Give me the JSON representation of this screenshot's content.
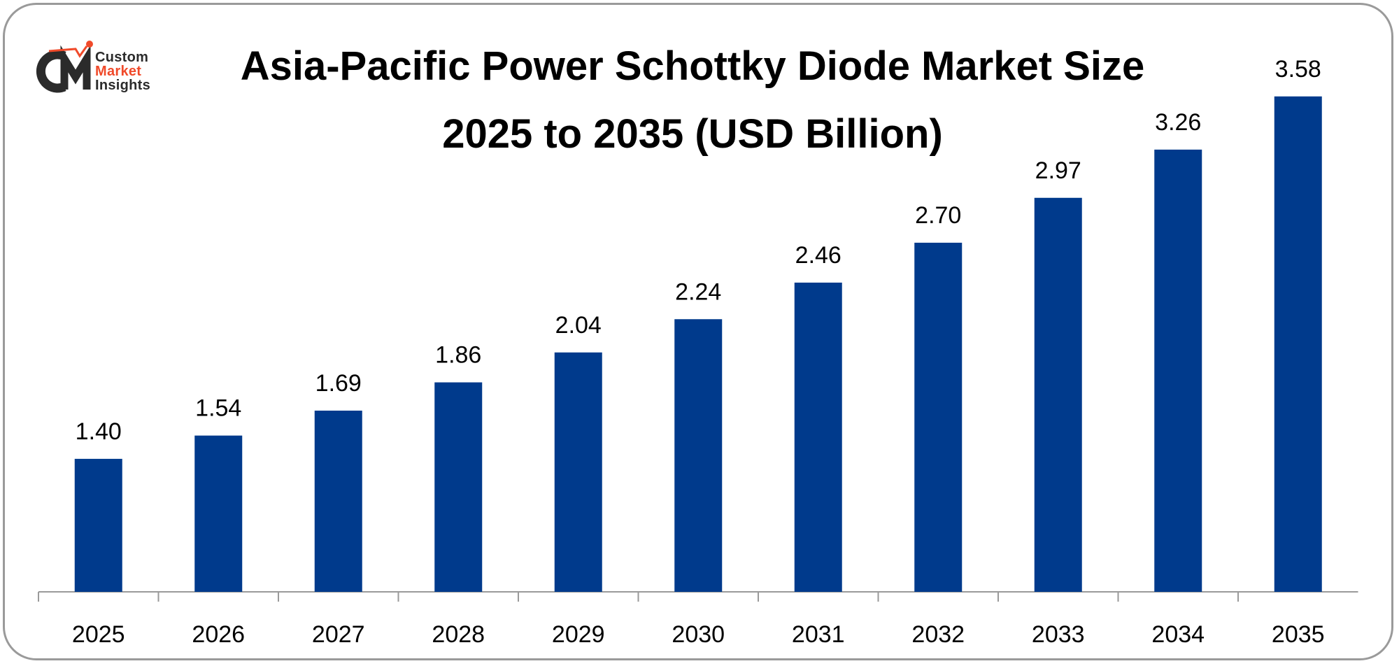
{
  "logo": {
    "line1": "Custom",
    "line2": "Market",
    "line3": "Insights",
    "mark": "CMI",
    "accent": "#f04a2a",
    "dark": "#2b2b2b"
  },
  "chart_data": {
    "type": "bar",
    "title_line1": "Asia-Pacific Power Schottky Diode Market Size",
    "title_line2": "2025 to 2035 (USD Billion)",
    "categories": [
      "2025",
      "2026",
      "2027",
      "2028",
      "2029",
      "2030",
      "2031",
      "2032",
      "2033",
      "2034",
      "2035"
    ],
    "values": [
      1.4,
      1.54,
      1.69,
      1.86,
      2.04,
      2.24,
      2.46,
      2.7,
      2.97,
      3.26,
      3.58
    ],
    "labels": [
      "1.40",
      "1.54",
      "1.69",
      "1.86",
      "2.04",
      "2.24",
      "2.46",
      "2.70",
      "2.97",
      "3.26",
      "3.58"
    ],
    "xlabel": "",
    "ylabel": "",
    "ylim": [
      0.6,
      4.0
    ],
    "bar_color": "#003a8c",
    "grid": false,
    "legend": "none"
  }
}
